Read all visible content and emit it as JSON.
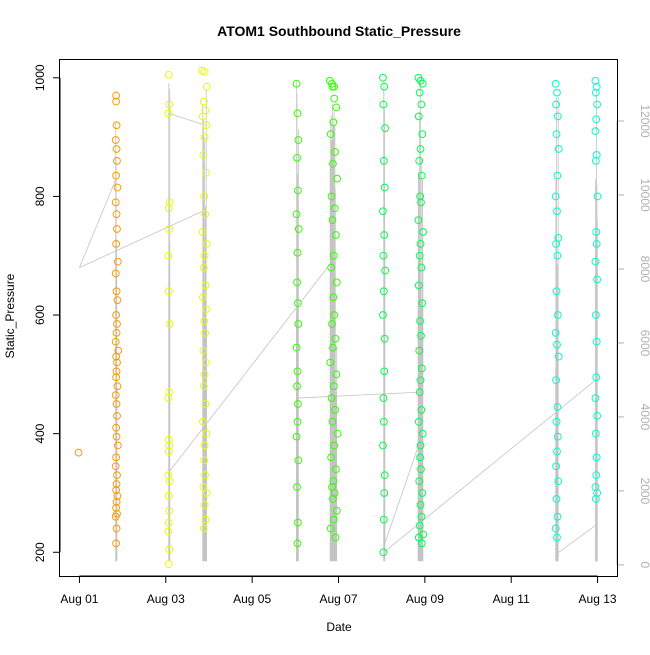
{
  "chart_data": {
    "type": "scatter",
    "title": "ATOM1 Southbound Static_Pressure",
    "xlabel": "Date",
    "ylabel": "Static_Pressure",
    "x_ticks": [
      "Aug 01",
      "Aug 03",
      "Aug 05",
      "Aug 07",
      "Aug 09",
      "Aug 11",
      "Aug 13"
    ],
    "x_tick_days": [
      1,
      3,
      5,
      7,
      9,
      11,
      13
    ],
    "xlim_days": [
      0.55,
      13.45
    ],
    "y_left": {
      "ylim": [
        160,
        1030
      ],
      "ticks": [
        200,
        400,
        600,
        800,
        1000
      ]
    },
    "y_right": {
      "ylim": [
        -300,
        13650
      ],
      "ticks": [
        0,
        2000,
        4000,
        6000,
        8000,
        10000,
        12000
      ],
      "color": "#b0b0b0"
    },
    "grid": false,
    "legend": "none",
    "point_colors_note_hex": [
      "#ff9900",
      "#e6ff00",
      "#33ff00",
      "#00ff4d",
      "#00ffcc"
    ],
    "series": [
      {
        "color": "#ff9900",
        "x_days": [
          0.98,
          1.85,
          1.85,
          1.86,
          1.84,
          1.86,
          1.87,
          1.85,
          1.88,
          1.84,
          1.86,
          1.87,
          1.85,
          1.89,
          1.84,
          1.86,
          1.88,
          1.85,
          1.87,
          1.86,
          1.84,
          1.9,
          1.85,
          1.87,
          1.86,
          1.85,
          1.88,
          1.84,
          1.86,
          1.87,
          1.85,
          1.86,
          1.89,
          1.85,
          1.84,
          1.87,
          1.86,
          1.85,
          1.88,
          1.86,
          1.85,
          1.87,
          1.84,
          1.86,
          1.85
        ],
        "y": [
          368,
          970,
          960,
          920,
          895,
          880,
          860,
          835,
          815,
          790,
          770,
          745,
          720,
          690,
          670,
          640,
          625,
          600,
          585,
          570,
          555,
          540,
          530,
          520,
          505,
          495,
          480,
          465,
          450,
          430,
          410,
          395,
          380,
          360,
          345,
          330,
          315,
          305,
          295,
          285,
          275,
          265,
          260,
          240,
          215
        ]
      },
      {
        "color": "#e6ff00",
        "x_days": [
          3.07,
          3.08,
          3.06,
          3.09,
          3.07,
          3.08,
          3.06,
          3.07,
          3.09,
          3.08,
          3.06,
          3.07,
          3.08,
          3.07,
          3.06,
          3.09,
          3.07,
          3.08,
          3.07,
          3.06,
          3.08,
          3.07,
          3.84,
          3.9,
          3.95,
          3.88,
          3.92,
          3.86,
          3.94,
          3.9,
          3.87,
          3.93,
          3.89,
          3.91,
          3.85,
          3.95,
          3.9,
          3.88,
          3.92,
          3.86,
          3.94,
          3.89,
          3.91,
          3.87,
          3.93,
          3.9,
          3.88,
          3.92,
          3.86,
          3.94,
          3.9,
          3.89,
          3.91,
          3.87,
          3.95,
          3.9,
          3.92,
          3.88
        ],
        "y": [
          1005,
          955,
          940,
          790,
          780,
          745,
          700,
          640,
          585,
          470,
          460,
          390,
          380,
          370,
          330,
          320,
          295,
          270,
          250,
          235,
          205,
          180,
          1012,
          1010,
          985,
          960,
          945,
          935,
          920,
          900,
          870,
          840,
          800,
          770,
          740,
          720,
          700,
          680,
          650,
          630,
          610,
          590,
          570,
          540,
          520,
          500,
          480,
          450,
          420,
          400,
          380,
          355,
          330,
          310,
          300,
          280,
          255,
          240
        ]
      },
      {
        "color": "#33ff00",
        "x_days": [
          6.03,
          6.05,
          6.07,
          6.04,
          6.06,
          6.03,
          6.08,
          6.05,
          6.04,
          6.06,
          6.07,
          6.03,
          6.05,
          6.04,
          6.06,
          6.05,
          6.03,
          6.07,
          6.04,
          6.06,
          6.05,
          6.8,
          6.85,
          6.9,
          6.95,
          6.88,
          6.82,
          6.92,
          6.87,
          6.97,
          6.84,
          6.91,
          6.86,
          6.94,
          6.89,
          6.83,
          6.96,
          6.88,
          6.9,
          6.85,
          6.93,
          6.87,
          6.81,
          6.95,
          6.89,
          6.84,
          6.92,
          6.86,
          6.98,
          6.9,
          6.83,
          6.94,
          6.88,
          6.85,
          6.91,
          6.87,
          6.96,
          6.89,
          6.82,
          6.93,
          6.86,
          6.9
        ],
        "y": [
          990,
          940,
          895,
          865,
          810,
          770,
          745,
          705,
          655,
          620,
          585,
          545,
          505,
          480,
          450,
          420,
          395,
          355,
          310,
          250,
          215,
          995,
          990,
          985,
          950,
          925,
          905,
          875,
          855,
          830,
          800,
          780,
          760,
          735,
          700,
          680,
          655,
          630,
          600,
          585,
          560,
          545,
          520,
          500,
          480,
          460,
          440,
          420,
          400,
          380,
          360,
          340,
          320,
          310,
          300,
          290,
          270,
          255,
          240,
          225,
          985,
          965
        ]
      },
      {
        "color": "#00ff4d",
        "x_days": [
          8.03,
          8.06,
          8.04,
          8.08,
          8.05,
          8.07,
          8.03,
          8.06,
          8.04,
          8.08,
          8.05,
          8.03,
          8.07,
          8.06,
          8.04,
          8.05,
          8.03,
          8.07,
          8.06,
          8.05,
          8.04,
          8.85,
          8.9,
          8.95,
          8.88,
          8.92,
          8.86,
          8.94,
          8.9,
          8.87,
          8.93,
          8.89,
          8.91,
          8.85,
          8.96,
          8.9,
          8.88,
          8.92,
          8.86,
          8.94,
          8.89,
          8.91,
          8.87,
          8.93,
          8.9,
          8.88,
          8.92,
          8.86,
          8.95,
          8.9,
          8.89,
          8.91,
          8.87,
          8.94,
          8.9,
          8.92,
          8.88,
          8.96,
          8.86,
          8.93
        ],
        "y": [
          1000,
          985,
          955,
          915,
          860,
          815,
          775,
          735,
          700,
          675,
          640,
          600,
          560,
          505,
          460,
          420,
          380,
          330,
          300,
          255,
          200,
          1000,
          995,
          990,
          975,
          955,
          935,
          905,
          880,
          860,
          835,
          800,
          790,
          760,
          740,
          720,
          700,
          680,
          650,
          620,
          590,
          565,
          540,
          510,
          490,
          470,
          440,
          420,
          400,
          380,
          360,
          340,
          320,
          300,
          280,
          260,
          245,
          230,
          225,
          215
        ]
      },
      {
        "color": "#00ffcc",
        "x_days": [
          12.03,
          12.06,
          12.04,
          12.08,
          12.05,
          12.1,
          12.07,
          12.03,
          12.06,
          12.09,
          12.04,
          12.07,
          12.05,
          12.08,
          12.03,
          12.06,
          12.1,
          12.04,
          12.07,
          12.05,
          12.08,
          12.06,
          12.04,
          12.09,
          12.05,
          12.07,
          12.03,
          12.06,
          12.95,
          12.98,
          12.96,
          12.99,
          12.97,
          12.95,
          12.98,
          12.96,
          13.0,
          12.97,
          12.95,
          12.99,
          12.96,
          12.98,
          12.97,
          12.95,
          12.99,
          12.96,
          12.98,
          12.97,
          12.95,
          12.99,
          12.96,
          12.98
        ],
        "y": [
          990,
          975,
          955,
          935,
          905,
          880,
          835,
          800,
          775,
          730,
          720,
          700,
          640,
          600,
          570,
          550,
          530,
          490,
          445,
          420,
          395,
          370,
          345,
          320,
          290,
          260,
          240,
          225,
          995,
          985,
          975,
          955,
          930,
          910,
          870,
          860,
          800,
          740,
          690,
          660,
          600,
          555,
          495,
          460,
          430,
          400,
          360,
          330,
          310,
          300,
          290,
          720
        ]
      }
    ]
  }
}
